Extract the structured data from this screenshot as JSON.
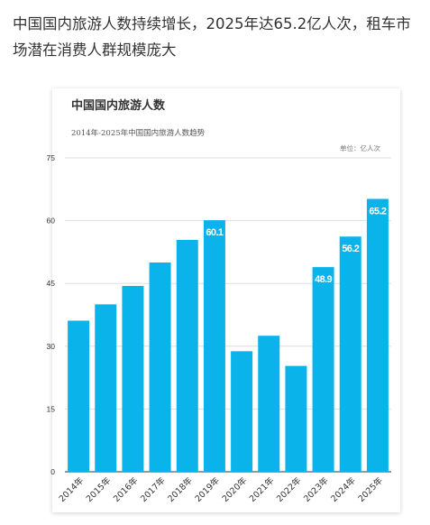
{
  "headline": "中国国内旅游人数持续增长，2025年达65.2亿人次，租车市场潜在消费人群规模庞大",
  "colors": {
    "bar": "#0ab4ea",
    "grid": "#dddddd",
    "axis": "#333333",
    "label_inside": "#ffffff"
  },
  "chart_data": {
    "type": "bar",
    "title": "中国国内旅游人数",
    "subtitle": "2014年-2025年中国国内旅游人数趋势",
    "unit": "单位：亿人次",
    "xlabel": "",
    "ylabel": "",
    "ylim": [
      0,
      75
    ],
    "yticks": [
      0,
      15,
      30,
      45,
      60,
      75
    ],
    "grid": true,
    "categories": [
      "2014年",
      "2015年",
      "2016年",
      "2017年",
      "2018年",
      "2019年",
      "2020年",
      "2021年",
      "2022年",
      "2023年",
      "2024年",
      "2025年"
    ],
    "values": [
      36.1,
      40.0,
      44.4,
      50.0,
      55.4,
      60.1,
      28.8,
      32.5,
      25.3,
      48.9,
      56.2,
      65.2
    ],
    "data_labels": [
      null,
      null,
      null,
      null,
      null,
      "60.1",
      null,
      null,
      null,
      "48.9",
      "56.2",
      "65.2"
    ]
  }
}
